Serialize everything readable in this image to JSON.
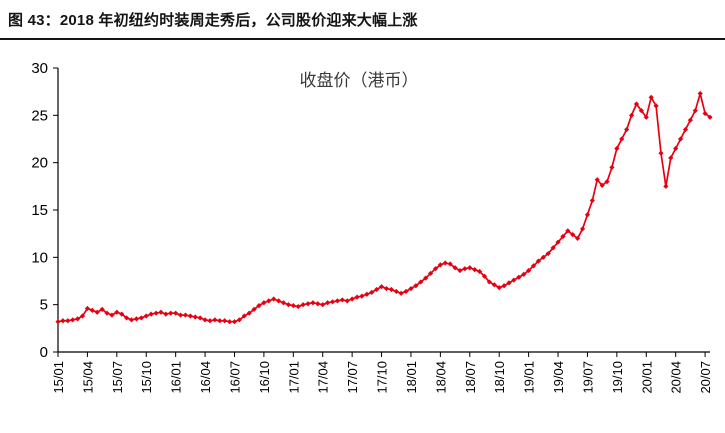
{
  "figure_title": "图 43：2018 年初纽约时装周走秀后，公司股价迎来大幅上涨",
  "chart_data": {
    "type": "line",
    "title": "图 43：2018 年初纽约时装周走秀后，公司股价迎来大幅上涨",
    "legend": "收盘价（港币）",
    "series_name": "收盘价（港币）",
    "series_color": "#e60012",
    "axis_color": "#000000",
    "label_color": "#000000",
    "legend_color": "#3a3a3a",
    "grid": "off",
    "legend_position": "top-center-inside",
    "ylim": [
      0,
      30
    ],
    "ytick_step": 5,
    "x_tick_every": 6,
    "x_tick_labels": [
      "15/01",
      "15/04",
      "15/07",
      "15/10",
      "16/01",
      "16/04",
      "16/07",
      "16/10",
      "17/01",
      "17/04",
      "17/07",
      "17/10",
      "18/01",
      "18/04",
      "18/07",
      "18/10",
      "19/01",
      "19/04",
      "19/07",
      "19/10",
      "20/01",
      "20/04",
      "20/07"
    ],
    "values": [
      3.2,
      3.3,
      3.3,
      3.4,
      3.5,
      3.8,
      4.6,
      4.4,
      4.2,
      4.5,
      4.1,
      3.9,
      4.2,
      4.0,
      3.6,
      3.4,
      3.5,
      3.6,
      3.8,
      4.0,
      4.1,
      4.2,
      4.0,
      4.1,
      4.1,
      3.9,
      3.9,
      3.8,
      3.7,
      3.6,
      3.4,
      3.3,
      3.4,
      3.3,
      3.3,
      3.2,
      3.2,
      3.4,
      3.8,
      4.1,
      4.5,
      4.9,
      5.2,
      5.4,
      5.6,
      5.4,
      5.2,
      5.0,
      4.9,
      4.8,
      5.0,
      5.1,
      5.2,
      5.1,
      5.0,
      5.2,
      5.3,
      5.4,
      5.5,
      5.4,
      5.6,
      5.8,
      5.9,
      6.1,
      6.3,
      6.6,
      6.9,
      6.7,
      6.6,
      6.4,
      6.2,
      6.4,
      6.7,
      7.0,
      7.4,
      7.8,
      8.3,
      8.8,
      9.2,
      9.4,
      9.3,
      8.9,
      8.6,
      8.8,
      8.9,
      8.7,
      8.5,
      8.0,
      7.4,
      7.1,
      6.8,
      7.0,
      7.3,
      7.6,
      7.9,
      8.2,
      8.6,
      9.1,
      9.6,
      10.0,
      10.4,
      11.0,
      11.6,
      12.2,
      12.8,
      12.4,
      12.0,
      13.0,
      14.5,
      16.0,
      18.2,
      17.6,
      18.0,
      19.5,
      21.5,
      22.5,
      23.5,
      25.0,
      26.2,
      25.5,
      24.8,
      26.9,
      26.0,
      21.0,
      17.5,
      20.5,
      21.5,
      22.5,
      23.5,
      24.5,
      25.5,
      27.3,
      25.2,
      24.8
    ]
  }
}
